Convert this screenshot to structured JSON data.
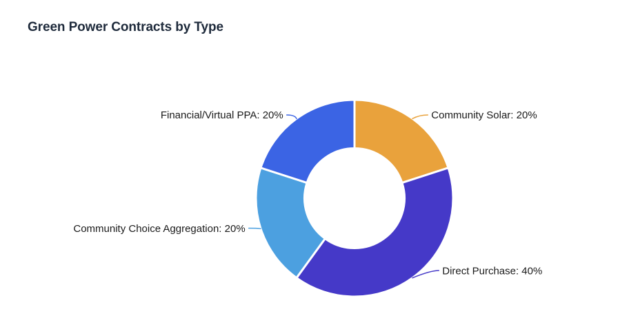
{
  "header": {
    "title": "Green Power Contracts by Type"
  },
  "theme": {
    "background": "#ffffff",
    "title_color": "#1e2a3b",
    "label_color": "#1a1a1a"
  },
  "chart_data": {
    "type": "pie",
    "variant": "donut",
    "title": "Green Power Contracts by Type",
    "unit": "%",
    "start_angle": "top",
    "direction": "clockwise",
    "inner_radius_ratio": 0.5,
    "legend": "none",
    "labels_position": "outside-with-leader-lines",
    "categories": [
      "Community Solar",
      "Direct Purchase",
      "Community Choice Aggregation",
      "Financial/Virtual PPA"
    ],
    "values": [
      20,
      40,
      20,
      20
    ],
    "slices": [
      {
        "label": "Community Solar",
        "value": 20,
        "display": "Community Solar: 20%",
        "color": "#E9A23C",
        "label_side": "right"
      },
      {
        "label": "Direct Purchase",
        "value": 40,
        "display": "Direct Purchase: 40%",
        "color": "#4539C8",
        "label_side": "right"
      },
      {
        "label": "Community Choice Aggregation",
        "value": 20,
        "display": "Community Choice Aggregation: 20%",
        "color": "#4CA0E0",
        "label_side": "left"
      },
      {
        "label": "Financial/Virtual PPA",
        "value": 20,
        "display": "Financial/Virtual PPA: 20%",
        "color": "#3B64E4",
        "label_side": "left"
      }
    ]
  }
}
